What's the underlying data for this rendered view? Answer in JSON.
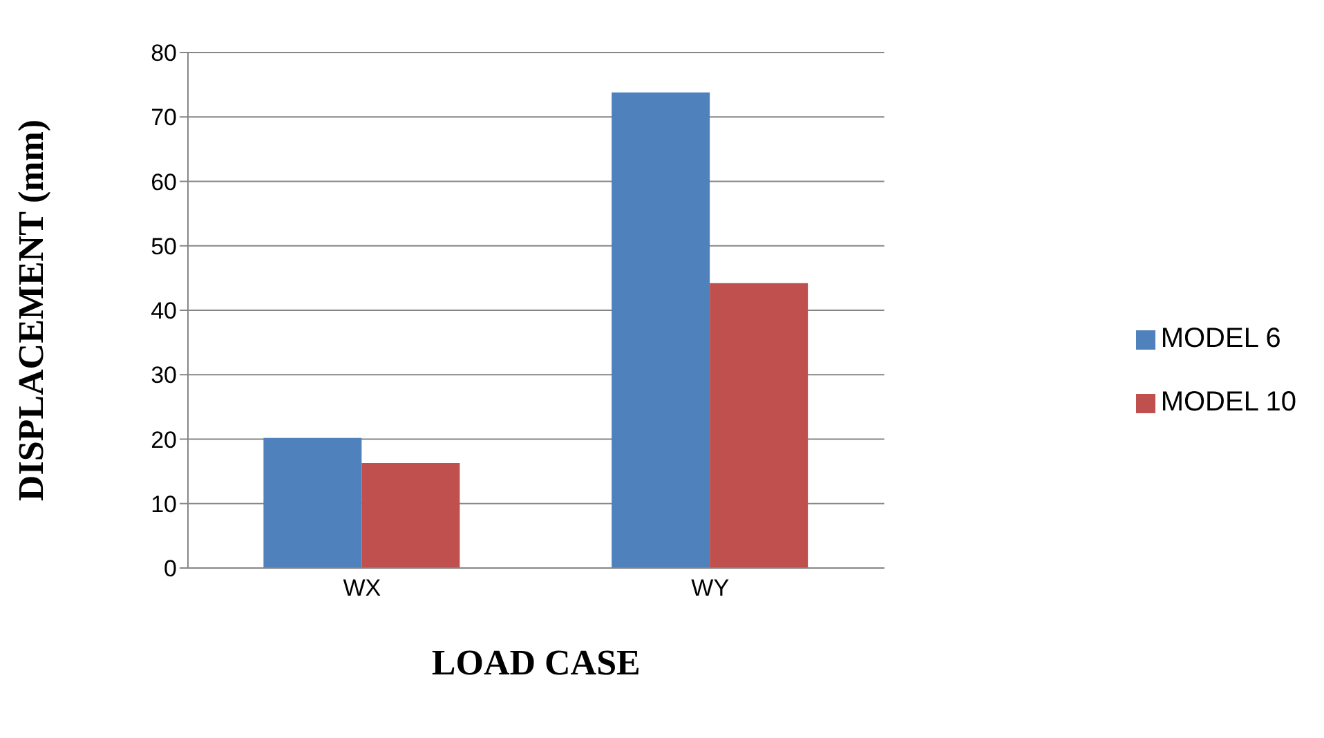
{
  "chart_data": {
    "type": "bar",
    "xlabel": "LOAD CASE",
    "ylabel": "DISPLACEMENT (mm)",
    "categories": [
      "WX",
      "WY"
    ],
    "series": [
      {
        "name": "MODEL 6",
        "color": "#4f81bd",
        "values": [
          20.2,
          73.8
        ]
      },
      {
        "name": "MODEL 10",
        "color": "#c0504d",
        "values": [
          16.3,
          44.2
        ]
      }
    ],
    "ylim": [
      0,
      80
    ],
    "yticks": [
      0,
      10,
      20,
      30,
      40,
      50,
      60,
      70,
      80
    ],
    "grid": "y",
    "legend": "right"
  }
}
